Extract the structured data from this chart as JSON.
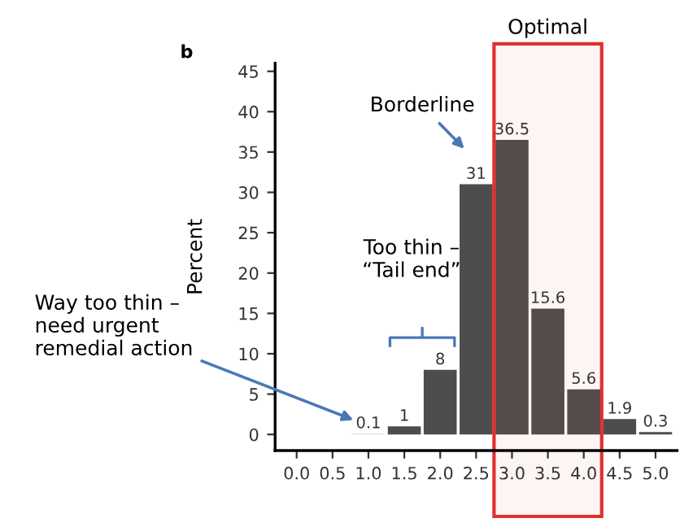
{
  "chart_data": {
    "type": "bar",
    "ylabel": "Percent",
    "x": [
      1.0,
      1.5,
      2.0,
      2.5,
      3.0,
      3.5,
      4.0,
      4.5,
      5.0
    ],
    "values": [
      0.1,
      1,
      8,
      31,
      36.5,
      15.6,
      5.6,
      1.9,
      0.3
    ],
    "colors": [
      "#d9d9d9",
      "#4d4d4d",
      "#4d4d4d",
      "#4d4d4d",
      "#4d4d4d",
      "#4d4d4d",
      "#4d4d4d",
      "#4d4d4d",
      "#4d4d4d"
    ],
    "data_labels": true,
    "xlim": [
      -0.3,
      5.3
    ],
    "xticks": [
      {
        "value": 0,
        "label": "0.0"
      },
      0.5,
      {
        "value": 1,
        "label": "1.0"
      },
      1.5,
      {
        "value": 2,
        "label": "2.0"
      },
      2.5,
      {
        "value": 3,
        "label": "3.0"
      },
      3.5,
      {
        "value": 4,
        "label": "4.0"
      },
      4.5,
      {
        "value": 5,
        "label": "5.0"
      }
    ],
    "ylim": [
      -2,
      46
    ],
    "yticks": [
      0,
      5,
      10,
      15,
      20,
      25,
      30,
      35,
      40,
      45
    ],
    "grid": false,
    "bands": [
      {
        "axis": "x",
        "from": 2.75,
        "to": 4.25,
        "label": "Optimal",
        "color": "#e03030"
      }
    ],
    "annotations": [
      "b",
      "Borderline",
      "Too thin –\n“Tail end”",
      "Way too thin –\nneed urgent\nremedial action"
    ]
  }
}
